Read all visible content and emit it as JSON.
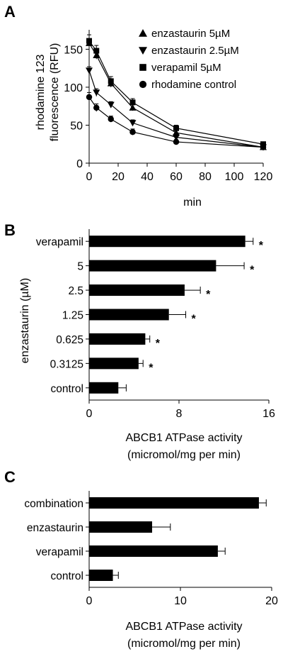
{
  "panels": {
    "a": {
      "letter": "A"
    },
    "b": {
      "letter": "B"
    },
    "c": {
      "letter": "C"
    }
  },
  "chart_data": [
    {
      "type": "line",
      "panel": "A",
      "title": "",
      "xlabel": "min",
      "ylabel_lines": [
        "rhodamine 123",
        "fluorescence (RFU)"
      ],
      "x": [
        0,
        5,
        15,
        30,
        60,
        120
      ],
      "xlim": [
        0,
        120
      ],
      "xticks": [
        "0",
        "20",
        "40",
        "60",
        "80",
        "100",
        "120"
      ],
      "ylim": [
        0,
        170
      ],
      "yticks": [
        "0",
        "50",
        "100",
        "150"
      ],
      "legend": "top-right",
      "series": [
        {
          "name": "enzastaurin 5µM",
          "marker": "triangle-up",
          "values": [
            158,
            142,
            105,
            73,
            40,
            21
          ],
          "errors": [
            6,
            5,
            5,
            4,
            3,
            2
          ]
        },
        {
          "name": "enzastaurin 2.5µM",
          "marker": "triangle-down",
          "values": [
            122,
            93,
            77,
            53,
            34,
            21
          ],
          "errors": [
            5,
            5,
            4,
            4,
            3,
            2
          ]
        },
        {
          "name": "verapamil 5µM",
          "marker": "square",
          "values": [
            161,
            148,
            108,
            80,
            46,
            25
          ],
          "errors": [
            8,
            7,
            6,
            5,
            4,
            3
          ]
        },
        {
          "name": "rhodamine control",
          "marker": "circle",
          "values": [
            87,
            73,
            58,
            41,
            28,
            21
          ],
          "errors": [
            6,
            5,
            4,
            4,
            3,
            2
          ]
        }
      ]
    },
    {
      "type": "bar",
      "panel": "B",
      "orientation": "horizontal",
      "title": "",
      "categories": [
        "verapamil",
        "5",
        "2.5",
        "1.25",
        "0.625",
        "0.3125",
        "control"
      ],
      "values": [
        13.9,
        11.3,
        8.5,
        7.1,
        5.0,
        4.4,
        2.6
      ],
      "errors": [
        0.7,
        2.5,
        1.4,
        1.5,
        0.4,
        0.4,
        0.7
      ],
      "significance": [
        "*",
        "*",
        "*",
        "*",
        "*",
        "*",
        ""
      ],
      "ylabel": "enzastaurin (µM)",
      "xlabel_lines": [
        "ABCB1 ATPase activity",
        "(micromol/mg per min)"
      ],
      "xlim": [
        0,
        16
      ],
      "xticks": [
        "0",
        "8",
        "16"
      ]
    },
    {
      "type": "bar",
      "panel": "C",
      "orientation": "horizontal",
      "title": "",
      "categories": [
        "combination",
        "enzastaurin",
        "verapamil",
        "control"
      ],
      "values": [
        18.6,
        6.9,
        14.1,
        2.6
      ],
      "errors": [
        0.8,
        2.0,
        0.8,
        0.6
      ],
      "xlabel_lines": [
        "ABCB1 ATPase activity",
        "(micromol/mg per min)"
      ],
      "xlim": [
        0,
        20
      ],
      "xticks": [
        "0",
        "10",
        "20"
      ]
    }
  ]
}
